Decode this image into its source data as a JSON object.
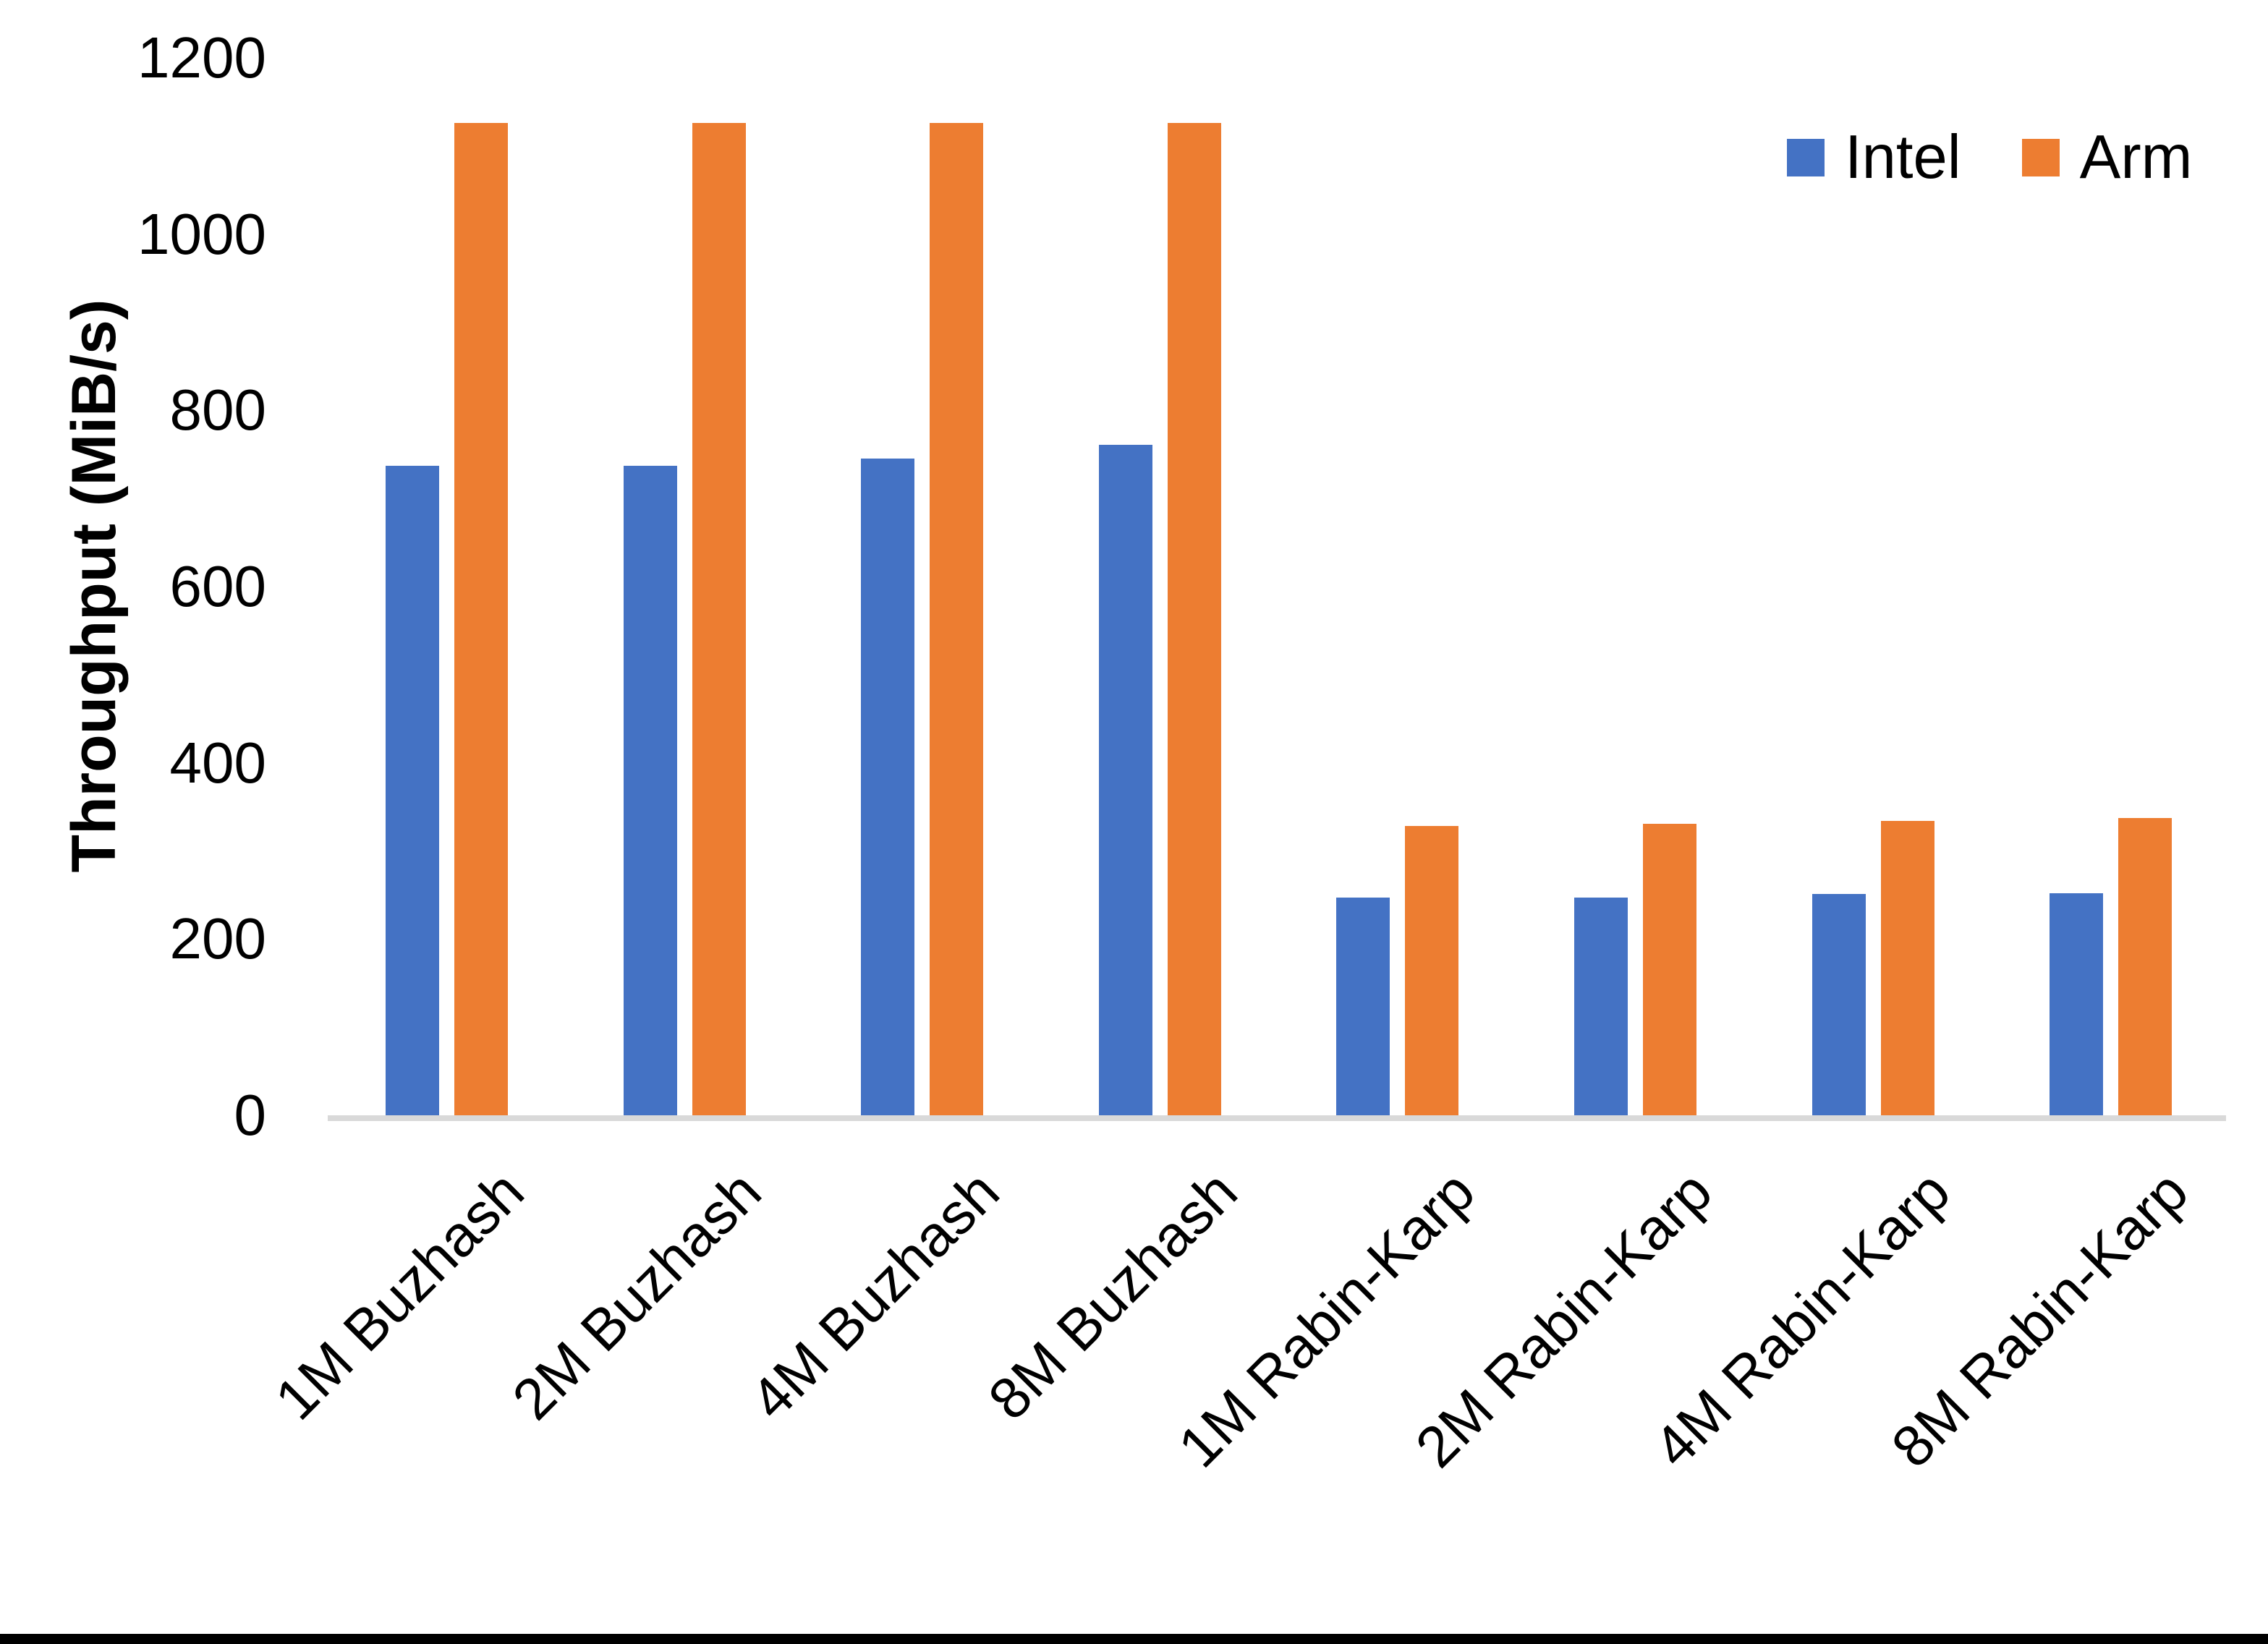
{
  "chart_data": {
    "type": "bar",
    "title": "",
    "ylabel": "Throughput (MiB/s)",
    "xlabel": "",
    "categories": [
      "1M Buzhash",
      "2M Buzhash",
      "4M Buzhash",
      "8M Buzhash",
      "1M Rabin-Karp",
      "2M Rabin-Karp",
      "4M Rabin-Karp",
      "8M Rabin-Karp"
    ],
    "series": [
      {
        "name": "Intel",
        "color": "#4472C4",
        "values": [
          737,
          737,
          745,
          761,
          247,
          247,
          251,
          252
        ]
      },
      {
        "name": "Arm",
        "color": "#ED7D31",
        "values": [
          1126,
          1126,
          1126,
          1126,
          328,
          331,
          334,
          337
        ]
      }
    ],
    "ylim": [
      0,
      1200
    ],
    "yticks": [
      0,
      200,
      400,
      600,
      800,
      1000,
      1200
    ],
    "grid": false,
    "legend_position": "top-right"
  },
  "axis": {
    "y_title": "Throughput (MiB/s)"
  },
  "legend": {
    "items": [
      {
        "label": "Intel",
        "color": "#4472C4"
      },
      {
        "label": "Arm",
        "color": "#ED7D31"
      }
    ]
  },
  "colors": {
    "background": "#FFFFFF",
    "axis_line": "#D9D9D9",
    "text": "#000000",
    "bottom_border": "#000000"
  }
}
